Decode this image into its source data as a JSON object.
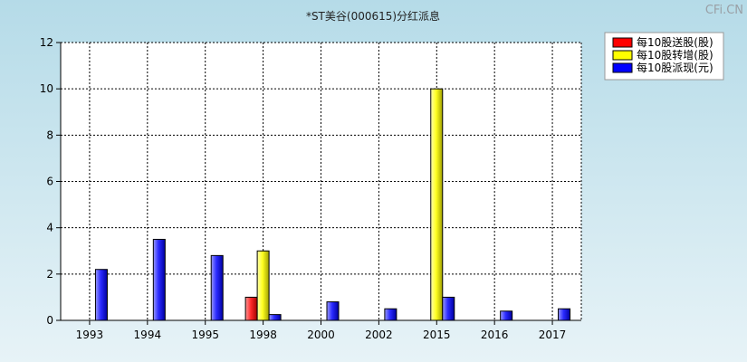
{
  "chart_data": {
    "type": "bar",
    "title": "*ST美谷(000615)分红派息",
    "watermark": "CFi.CN",
    "categories": [
      "1993",
      "1994",
      "1995",
      "1998",
      "2000",
      "2002",
      "2015",
      "2016",
      "2017"
    ],
    "series": [
      {
        "name": "每10股送股(股)",
        "color": "#ff0000",
        "values": [
          0,
          0,
          0,
          1,
          0,
          0,
          0,
          0,
          0
        ]
      },
      {
        "name": "每10股转增(股)",
        "color": "#ffff00",
        "values": [
          0,
          0,
          0,
          3,
          0,
          0,
          10,
          0,
          0
        ]
      },
      {
        "name": "每10股派现(元)",
        "color": "#0000ff",
        "values": [
          2.2,
          3.5,
          2.8,
          0.25,
          0.8,
          0.5,
          1,
          0.4,
          0.5
        ]
      }
    ],
    "ylim": [
      0,
      12
    ],
    "yticks": [
      0,
      2,
      4,
      6,
      8,
      10,
      12
    ],
    "xlabel": "",
    "ylabel": "",
    "grid": true,
    "legend_position": "top-right"
  }
}
